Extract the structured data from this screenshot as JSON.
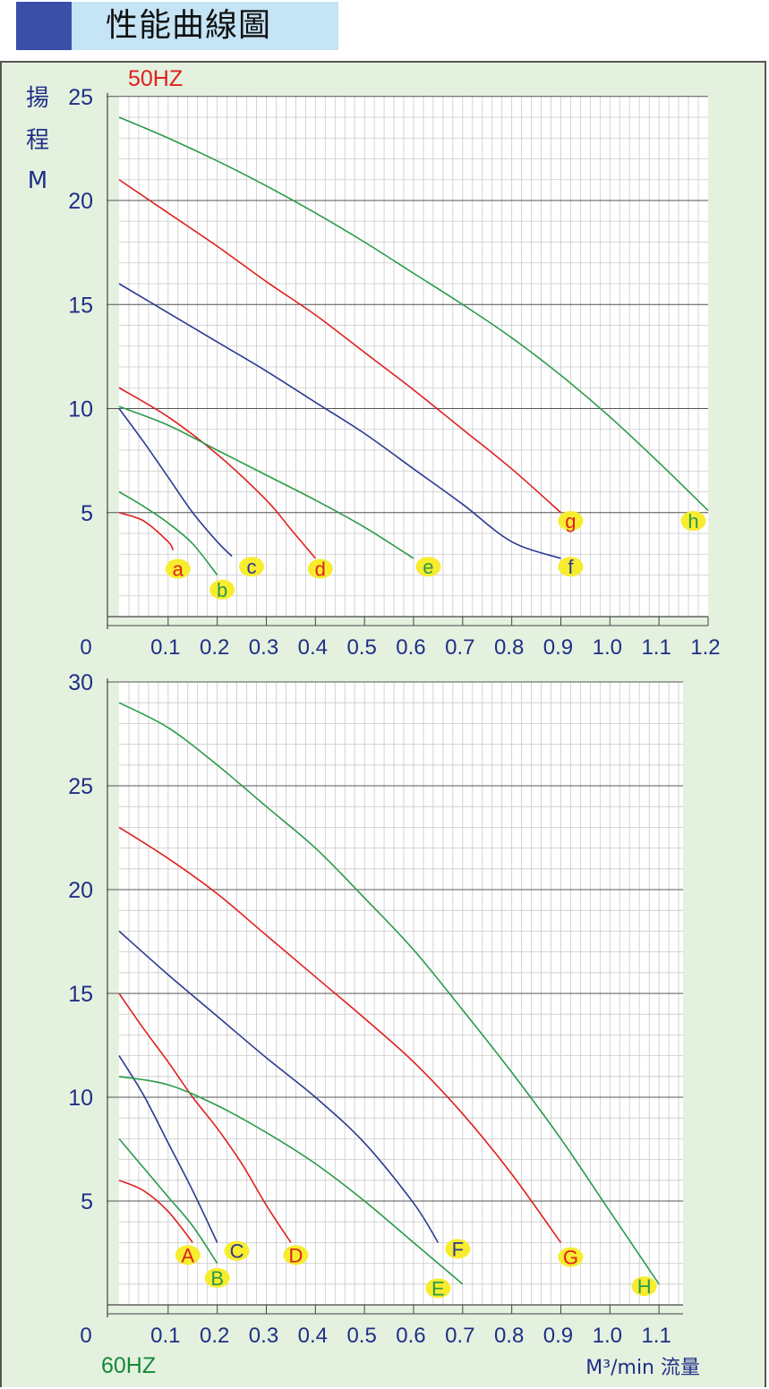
{
  "header": {
    "title": "性能曲線圖"
  },
  "chart_data": [
    {
      "type": "line",
      "title": "50HZ",
      "ylabel_chars": [
        "揚",
        "程",
        "M"
      ],
      "xlim": [
        0,
        1.2
      ],
      "ylim": [
        0,
        25
      ],
      "x_ticks": [
        "0",
        "0.1",
        "0.2",
        "0.3",
        "0.4",
        "0.5",
        "0.6",
        "0.7",
        "0.8",
        "0.9",
        "1.0",
        "1.1",
        "1.2"
      ],
      "y_ticks": [
        "5",
        "10",
        "15",
        "20",
        "25"
      ],
      "grid": true,
      "series": [
        {
          "name": "a",
          "color": "#e0201e",
          "points": [
            [
              0,
              5
            ],
            [
              0.05,
              4.6
            ],
            [
              0.1,
              3.6
            ],
            [
              0.11,
              3.2
            ]
          ]
        },
        {
          "name": "b",
          "color": "#2a9a4a",
          "points": [
            [
              0,
              6
            ],
            [
              0.05,
              5.3
            ],
            [
              0.1,
              4.5
            ],
            [
              0.15,
              3.5
            ],
            [
              0.2,
              2.0
            ]
          ]
        },
        {
          "name": "c",
          "color": "#2b3a90",
          "points": [
            [
              0,
              10
            ],
            [
              0.05,
              8.4
            ],
            [
              0.1,
              6.7
            ],
            [
              0.15,
              5.0
            ],
            [
              0.2,
              3.6
            ],
            [
              0.23,
              2.9
            ]
          ]
        },
        {
          "name": "d",
          "color": "#e0201e",
          "points": [
            [
              0,
              11
            ],
            [
              0.1,
              9.6
            ],
            [
              0.2,
              7.8
            ],
            [
              0.3,
              5.6
            ],
            [
              0.35,
              4.2
            ],
            [
              0.4,
              2.8
            ]
          ]
        },
        {
          "name": "e",
          "color": "#2a9a4a",
          "points": [
            [
              0,
              10.1
            ],
            [
              0.1,
              9.2
            ],
            [
              0.2,
              8.0
            ],
            [
              0.3,
              6.8
            ],
            [
              0.4,
              5.6
            ],
            [
              0.5,
              4.3
            ],
            [
              0.6,
              2.8
            ]
          ]
        },
        {
          "name": "f",
          "color": "#2b3a90",
          "points": [
            [
              0,
              16
            ],
            [
              0.1,
              14.6
            ],
            [
              0.2,
              13.2
            ],
            [
              0.3,
              11.8
            ],
            [
              0.4,
              10.3
            ],
            [
              0.5,
              8.8
            ],
            [
              0.6,
              7.1
            ],
            [
              0.7,
              5.4
            ],
            [
              0.8,
              3.6
            ],
            [
              0.9,
              2.8
            ]
          ]
        },
        {
          "name": "g",
          "color": "#e0201e",
          "points": [
            [
              0,
              21
            ],
            [
              0.1,
              19.4
            ],
            [
              0.2,
              17.8
            ],
            [
              0.3,
              16.1
            ],
            [
              0.4,
              14.5
            ],
            [
              0.5,
              12.7
            ],
            [
              0.6,
              10.9
            ],
            [
              0.7,
              9.0
            ],
            [
              0.8,
              7.1
            ],
            [
              0.9,
              5.0
            ]
          ]
        },
        {
          "name": "h",
          "color": "#2a9a4a",
          "points": [
            [
              0,
              24
            ],
            [
              0.1,
              23.0
            ],
            [
              0.2,
              21.9
            ],
            [
              0.3,
              20.7
            ],
            [
              0.4,
              19.4
            ],
            [
              0.5,
              18.0
            ],
            [
              0.6,
              16.5
            ],
            [
              0.7,
              15.0
            ],
            [
              0.8,
              13.4
            ],
            [
              0.9,
              11.6
            ],
            [
              1.0,
              9.6
            ],
            [
              1.1,
              7.4
            ],
            [
              1.2,
              5.1
            ]
          ]
        }
      ],
      "labels": [
        {
          "text": "a",
          "x": 0.12,
          "y": 2.3,
          "color": "#e0201e"
        },
        {
          "text": "b",
          "x": 0.21,
          "y": 1.3,
          "color": "#2a9a4a"
        },
        {
          "text": "c",
          "x": 0.27,
          "y": 2.4,
          "color": "#2b3a90"
        },
        {
          "text": "d",
          "x": 0.41,
          "y": 2.3,
          "color": "#e0201e"
        },
        {
          "text": "e",
          "x": 0.63,
          "y": 2.4,
          "color": "#2a9a4a"
        },
        {
          "text": "f",
          "x": 0.92,
          "y": 2.4,
          "color": "#2b3a90"
        },
        {
          "text": "g",
          "x": 0.92,
          "y": 4.6,
          "color": "#e0201e"
        },
        {
          "text": "h",
          "x": 1.17,
          "y": 4.6,
          "color": "#2a9a4a"
        }
      ]
    },
    {
      "type": "line",
      "title": "60HZ",
      "xlabel": "M³/min 流量",
      "xlim": [
        0,
        1.2
      ],
      "ylim": [
        0,
        30
      ],
      "x_ticks": [
        "0",
        "0.1",
        "0.2",
        "0.3",
        "0.4",
        "0.5",
        "0.6",
        "0.7",
        "0.8",
        "0.9",
        "1.0",
        "1.1"
      ],
      "y_ticks": [
        "5",
        "10",
        "15",
        "20",
        "25",
        "30"
      ],
      "grid": true,
      "series": [
        {
          "name": "A",
          "color": "#e0201e",
          "points": [
            [
              0,
              6
            ],
            [
              0.05,
              5.5
            ],
            [
              0.1,
              4.5
            ],
            [
              0.15,
              3.0
            ]
          ]
        },
        {
          "name": "B",
          "color": "#2a9a4a",
          "points": [
            [
              0,
              8
            ],
            [
              0.05,
              6.6
            ],
            [
              0.1,
              5.2
            ],
            [
              0.15,
              3.8
            ],
            [
              0.2,
              2.0
            ]
          ]
        },
        {
          "name": "C",
          "color": "#2b3a90",
          "points": [
            [
              0,
              12
            ],
            [
              0.05,
              10.1
            ],
            [
              0.1,
              7.8
            ],
            [
              0.15,
              5.5
            ],
            [
              0.2,
              3.0
            ]
          ]
        },
        {
          "name": "D",
          "color": "#e0201e",
          "points": [
            [
              0,
              15
            ],
            [
              0.05,
              13.3
            ],
            [
              0.1,
              11.7
            ],
            [
              0.15,
              10.0
            ],
            [
              0.2,
              8.5
            ],
            [
              0.25,
              6.8
            ],
            [
              0.3,
              4.8
            ],
            [
              0.35,
              3.0
            ]
          ]
        },
        {
          "name": "E",
          "color": "#2a9a4a",
          "points": [
            [
              0,
              11
            ],
            [
              0.1,
              10.6
            ],
            [
              0.2,
              9.6
            ],
            [
              0.3,
              8.3
            ],
            [
              0.4,
              6.8
            ],
            [
              0.5,
              5.0
            ],
            [
              0.6,
              3.0
            ],
            [
              0.7,
              1.0
            ]
          ]
        },
        {
          "name": "F",
          "color": "#2b3a90",
          "points": [
            [
              0,
              18
            ],
            [
              0.1,
              15.9
            ],
            [
              0.2,
              13.9
            ],
            [
              0.3,
              11.9
            ],
            [
              0.4,
              10.0
            ],
            [
              0.5,
              7.8
            ],
            [
              0.6,
              4.9
            ],
            [
              0.65,
              3.0
            ]
          ]
        },
        {
          "name": "G",
          "color": "#e0201e",
          "points": [
            [
              0,
              23
            ],
            [
              0.1,
              21.5
            ],
            [
              0.2,
              19.8
            ],
            [
              0.3,
              17.8
            ],
            [
              0.4,
              15.8
            ],
            [
              0.5,
              13.8
            ],
            [
              0.6,
              11.7
            ],
            [
              0.7,
              9.2
            ],
            [
              0.8,
              6.3
            ],
            [
              0.9,
              3.0
            ]
          ]
        },
        {
          "name": "H",
          "color": "#2a9a4a",
          "points": [
            [
              0,
              29
            ],
            [
              0.1,
              27.8
            ],
            [
              0.2,
              26.0
            ],
            [
              0.3,
              24.0
            ],
            [
              0.4,
              22.0
            ],
            [
              0.5,
              19.6
            ],
            [
              0.6,
              17.1
            ],
            [
              0.7,
              14.2
            ],
            [
              0.8,
              11.2
            ],
            [
              0.9,
              8.0
            ],
            [
              1.0,
              4.5
            ],
            [
              1.1,
              1.0
            ]
          ]
        }
      ],
      "labels": [
        {
          "text": "A",
          "x": 0.14,
          "y": 2.4,
          "color": "#e0201e"
        },
        {
          "text": "B",
          "x": 0.2,
          "y": 1.3,
          "color": "#2a9a4a"
        },
        {
          "text": "C",
          "x": 0.24,
          "y": 2.6,
          "color": "#2b3a90"
        },
        {
          "text": "D",
          "x": 0.36,
          "y": 2.4,
          "color": "#e0201e"
        },
        {
          "text": "E",
          "x": 0.65,
          "y": 0.8,
          "color": "#2a9a4a"
        },
        {
          "text": "F",
          "x": 0.69,
          "y": 2.7,
          "color": "#2b3a90"
        },
        {
          "text": "G",
          "x": 0.92,
          "y": 2.3,
          "color": "#e0201e"
        },
        {
          "text": "H",
          "x": 1.07,
          "y": 0.9,
          "color": "#2a9a4a"
        }
      ]
    }
  ]
}
